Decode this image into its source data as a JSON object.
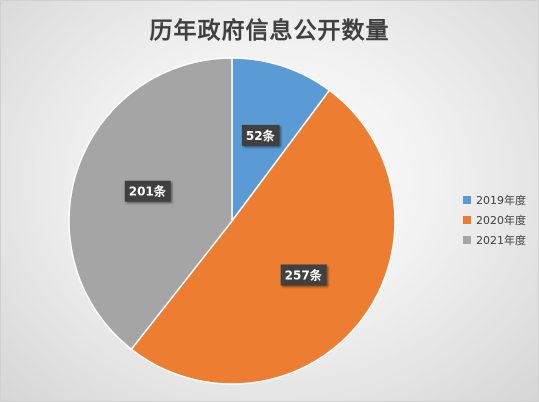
{
  "chart_data": {
    "type": "pie",
    "title": "历年政府信息公开数量",
    "categories": [
      "2019年度",
      "2020年度",
      "2021年度"
    ],
    "values": [
      52,
      257,
      201
    ],
    "data_labels": [
      "52条",
      "257条",
      "201条"
    ],
    "colors": [
      "#5b9bd5",
      "#ed7d31",
      "#a5a5a5"
    ],
    "legend_position": "right"
  }
}
